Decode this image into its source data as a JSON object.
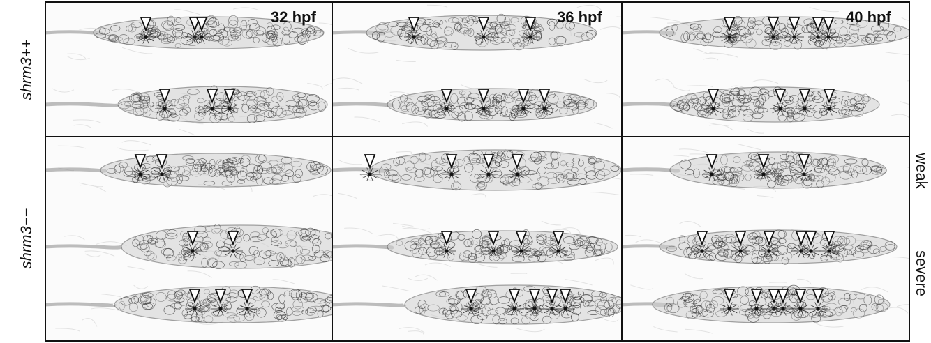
{
  "columns": [
    {
      "label": "32 hpf"
    },
    {
      "label": "36 hpf"
    },
    {
      "label": "40 hpf"
    }
  ],
  "row_labels": {
    "wildtype": "shrm3+​+",
    "mutant": "shrm3−​−"
  },
  "side_labels": {
    "weak": "weak",
    "severe": "severe"
  },
  "image_description_counts": {
    "arrowheads": {
      "col1": [
        3,
        3,
        2,
        2,
        3
      ],
      "col2": [
        3,
        4,
        4,
        4,
        5
      ],
      "col3": [
        5,
        4,
        3,
        6,
        6
      ]
    }
  },
  "colors": {
    "frame": "#111111",
    "divider": "#b9b9b9",
    "tissue": "#d0d0d0",
    "membrane": "#2a2a2a",
    "arrowhead_fill": "#ffffff",
    "arrowhead_stroke": "#111111"
  }
}
